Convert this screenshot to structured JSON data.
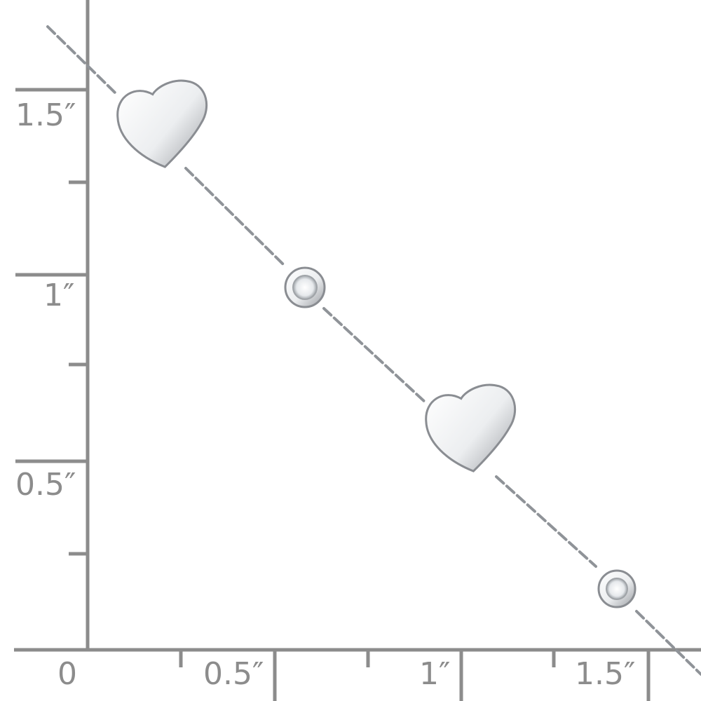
{
  "ruler": {
    "color": "#8c8c8c",
    "vertical_labels": [
      "1.5″",
      "1″",
      "0.5″"
    ],
    "horizontal_labels": [
      "0",
      "0.5″",
      "1″",
      "1.5″"
    ]
  },
  "product": {
    "metal_color": "#d9dbde",
    "stone_color": "#f4f6f8"
  }
}
